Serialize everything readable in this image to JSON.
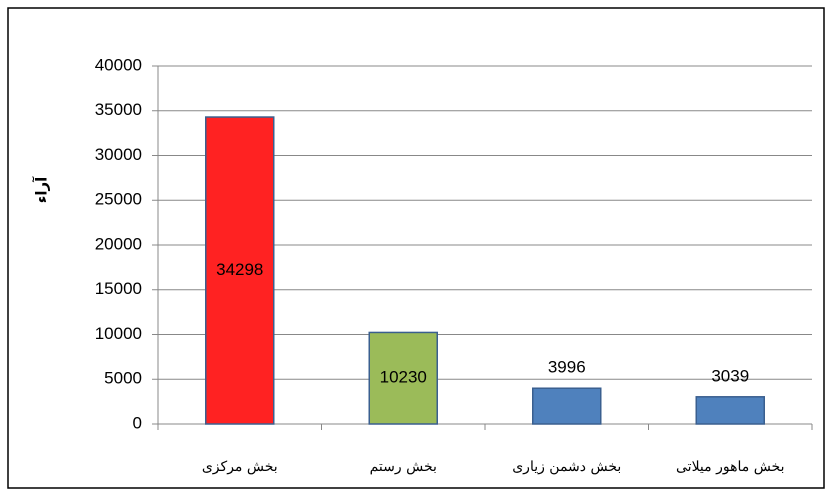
{
  "chart_data": {
    "type": "bar",
    "y_label": "آراء",
    "categories": [
      "بخش مرکزی",
      "بخش رستم",
      "بخش دشمن زیاری",
      "بخش ماهور میلاتی"
    ],
    "values": [
      34298,
      10230,
      3996,
      3039
    ],
    "colors": [
      "#ff2222",
      "#9bbb59",
      "#4f81bd",
      "#4f81bd"
    ],
    "ylim": [
      0,
      40000
    ],
    "yticks": [
      0,
      5000,
      10000,
      15000,
      20000,
      25000,
      30000,
      35000,
      40000
    ],
    "grid": true
  }
}
